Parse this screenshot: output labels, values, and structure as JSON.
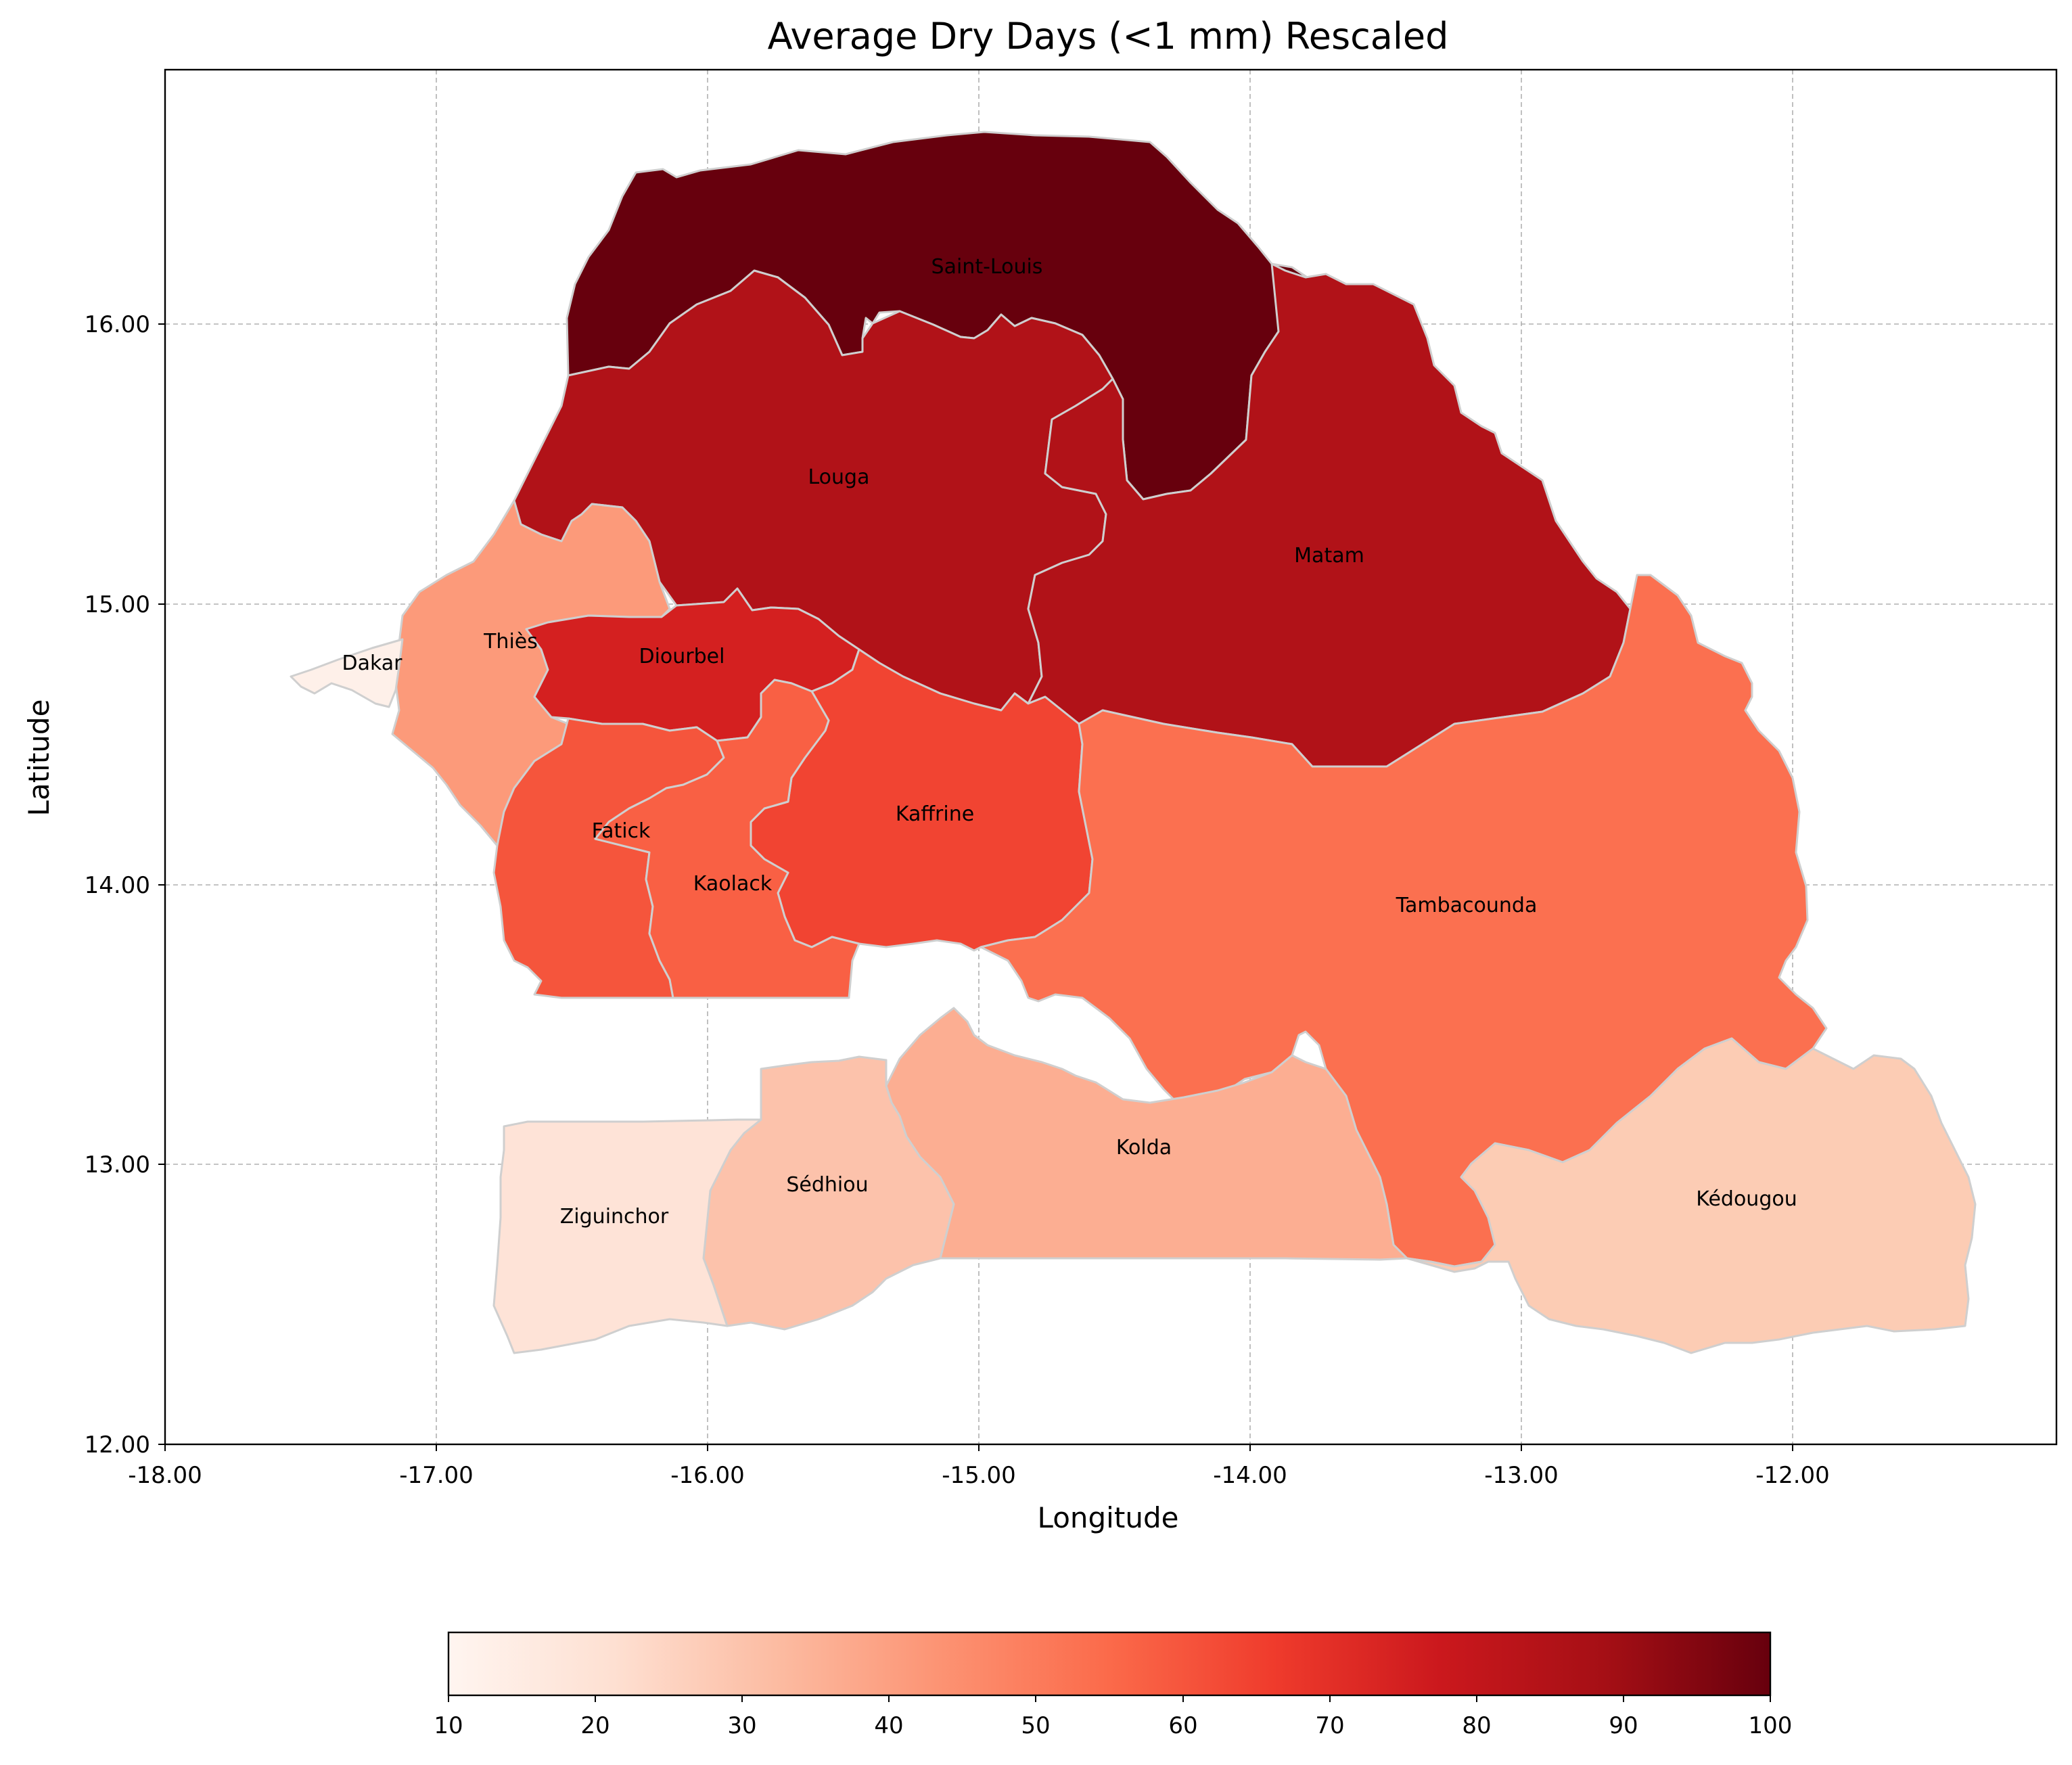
{
  "chart_data": {
    "type": "choropleth",
    "title": "Average Dry Days (<1 mm) Rescaled",
    "xlabel": "Longitude",
    "ylabel": "Latitude",
    "xlim": [
      -18,
      -11.02
    ],
    "ylim": [
      12,
      16.9
    ],
    "x_ticks": [
      "-18.00",
      "-17.00",
      "-16.00",
      "-15.00",
      "-14.00",
      "-13.00",
      "-12.00"
    ],
    "y_ticks": [
      "12.00",
      "13.00",
      "14.00",
      "15.00",
      "16.00"
    ],
    "grid": true,
    "colormap": "Reds",
    "colorbar": {
      "range": [
        10,
        100
      ],
      "ticks": [
        "10",
        "20",
        "30",
        "40",
        "50",
        "60",
        "70",
        "80",
        "90",
        "100"
      ],
      "placement": "bottom"
    },
    "regions": [
      {
        "name": "Saint-Louis",
        "value": 100,
        "color": "#67000d"
      },
      {
        "name": "Louga",
        "value": 82,
        "color": "#b11218"
      },
      {
        "name": "Matam",
        "value": 82,
        "color": "#b11218"
      },
      {
        "name": "Diourbel",
        "value": 73,
        "color": "#d42020"
      },
      {
        "name": "Kaffrine",
        "value": 66,
        "color": "#f14432"
      },
      {
        "name": "Fatick",
        "value": 60,
        "color": "#f5553c"
      },
      {
        "name": "Kaolack",
        "value": 57,
        "color": "#f96044"
      },
      {
        "name": "Tambacounda",
        "value": 55,
        "color": "#fb7050"
      },
      {
        "name": "Thiès",
        "value": 44,
        "color": "#fc9a7a"
      },
      {
        "name": "Kolda",
        "value": 38,
        "color": "#fcae92"
      },
      {
        "name": "Sédhiou",
        "value": 32,
        "color": "#fcc2ab"
      },
      {
        "name": "Kédougou",
        "value": 31,
        "color": "#fcccb4"
      },
      {
        "name": "Ziguinchor",
        "value": 21,
        "color": "#fee3d7"
      },
      {
        "name": "Dakar",
        "value": 12,
        "color": "#fef0e9"
      }
    ]
  }
}
